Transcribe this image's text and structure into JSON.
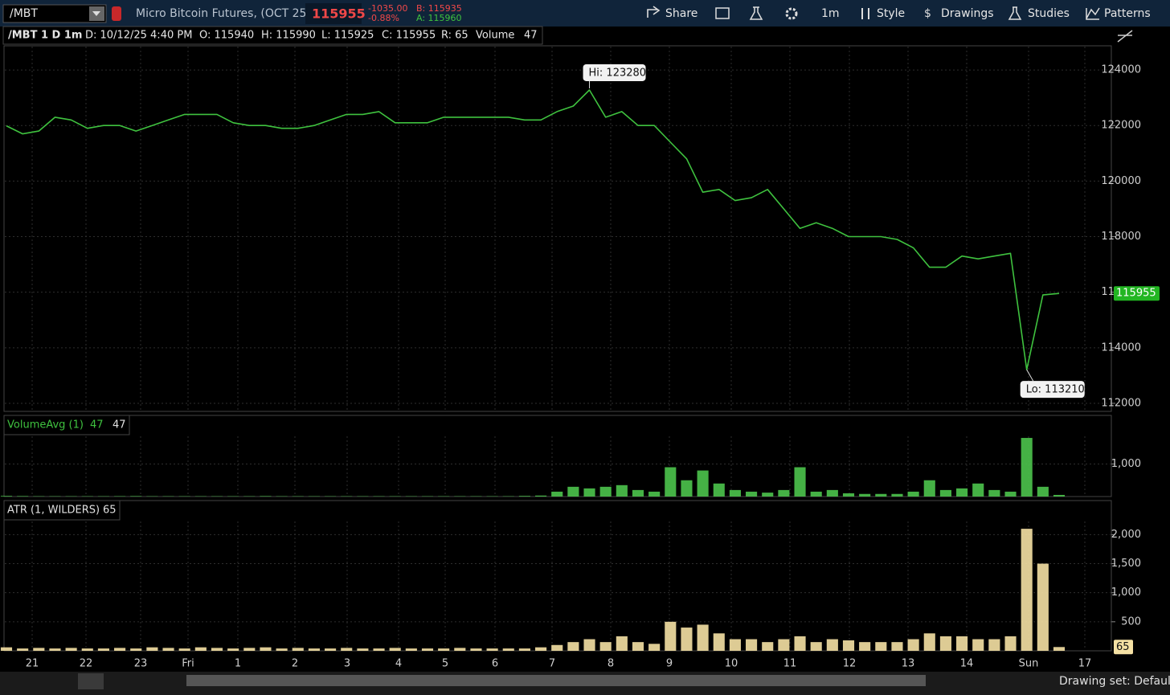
{
  "toolbar": {
    "symbol": "/MBT",
    "description": "Micro Bitcoin Futures, (OCT 25)",
    "last": "115955",
    "change": "-1035.00",
    "change_pct": "-0.88%",
    "bid": "B: 115935",
    "ask": "A: 115960",
    "share": "Share",
    "timeframe": "1m",
    "style": "Style",
    "drawings": "Drawings",
    "studies": "Studies",
    "patterns": "Patterns"
  },
  "header": {
    "label": "/MBT 1 D 1m",
    "date": "D: 10/12/25 4:40 PM",
    "open": "O: 115940",
    "high": "H: 115990",
    "low": "L: 115925",
    "close": "C: 115955",
    "range": "R: 65",
    "volume_label": "Volume",
    "volume": "47"
  },
  "time_axis": {
    "labels": [
      "21",
      "22",
      "23",
      "Fri",
      "1",
      "2",
      "3",
      "4",
      "5",
      "6",
      "7",
      "8",
      "9",
      "10",
      "11",
      "12",
      "13",
      "14",
      "Sun",
      "17"
    ]
  },
  "footer": {
    "drawing_set": "Drawing set: Default"
  },
  "chart_data": [
    {
      "type": "line",
      "color": "#3fc23f",
      "values": [
        121990,
        121700,
        121800,
        122300,
        122200,
        121900,
        122000,
        122000,
        121800,
        122000,
        122200,
        122400,
        122400,
        122400,
        122100,
        122000,
        122000,
        121900,
        121900,
        122000,
        122200,
        122400,
        122400,
        122500,
        122100,
        122100,
        122100,
        122300,
        122300,
        122300,
        122300,
        122300,
        122200,
        122200,
        122500,
        122700,
        123280,
        122300,
        122500,
        122000,
        122000,
        121400,
        120800,
        119600,
        119700,
        119300,
        119400,
        119700,
        119000,
        118300,
        118500,
        118300,
        118000,
        118000,
        118000,
        117900,
        117600,
        116900,
        116900,
        117300,
        117200,
        117300,
        117400,
        113210,
        115900,
        115955
      ],
      "ylim": [
        111710,
        124870
      ],
      "yticks": [
        112000,
        114000,
        116000,
        118000,
        120000,
        122000,
        124000
      ],
      "grid": true,
      "high_label": "Hi: 123280",
      "low_label": "Lo: 113210",
      "last_label": "115955"
    },
    {
      "type": "bar",
      "color": "#4cc44c",
      "title": "VolumeAvg (1)",
      "legend_values": [
        "47",
        "47"
      ],
      "values": [
        20,
        15,
        10,
        10,
        10,
        10,
        10,
        12,
        15,
        10,
        10,
        10,
        10,
        10,
        10,
        10,
        15,
        10,
        10,
        10,
        10,
        10,
        10,
        10,
        10,
        10,
        10,
        10,
        10,
        10,
        10,
        10,
        20,
        30,
        150,
        300,
        250,
        300,
        350,
        200,
        150,
        900,
        500,
        800,
        400,
        200,
        150,
        120,
        200,
        900,
        150,
        200,
        100,
        80,
        80,
        80,
        150,
        500,
        200,
        250,
        400,
        200,
        150,
        1800,
        300,
        50
      ],
      "ylim": [
        0,
        1875
      ],
      "yticks": [
        {
          "value": 1000,
          "label": "1,000"
        }
      ],
      "grid": true
    },
    {
      "type": "bar",
      "color": "#f5e1a4",
      "title": "ATR (1, WILDERS)",
      "legend_values": [
        "65"
      ],
      "values": [
        60,
        40,
        50,
        40,
        50,
        40,
        40,
        50,
        40,
        60,
        50,
        40,
        60,
        50,
        40,
        50,
        60,
        40,
        50,
        40,
        40,
        50,
        40,
        40,
        50,
        40,
        40,
        40,
        50,
        40,
        40,
        40,
        40,
        60,
        100,
        150,
        200,
        150,
        250,
        150,
        120,
        500,
        400,
        450,
        300,
        200,
        200,
        150,
        200,
        250,
        150,
        200,
        180,
        150,
        150,
        150,
        200,
        300,
        250,
        250,
        200,
        200,
        250,
        2100,
        1500,
        65
      ],
      "ylim": [
        0,
        2240
      ],
      "yticks": [
        500,
        {
          "value": 1000,
          "label": "1,000"
        },
        {
          "value": 1500,
          "label": "1,500"
        },
        {
          "value": 2000,
          "label": "2,000"
        }
      ],
      "grid": true,
      "last_label": "65"
    }
  ]
}
